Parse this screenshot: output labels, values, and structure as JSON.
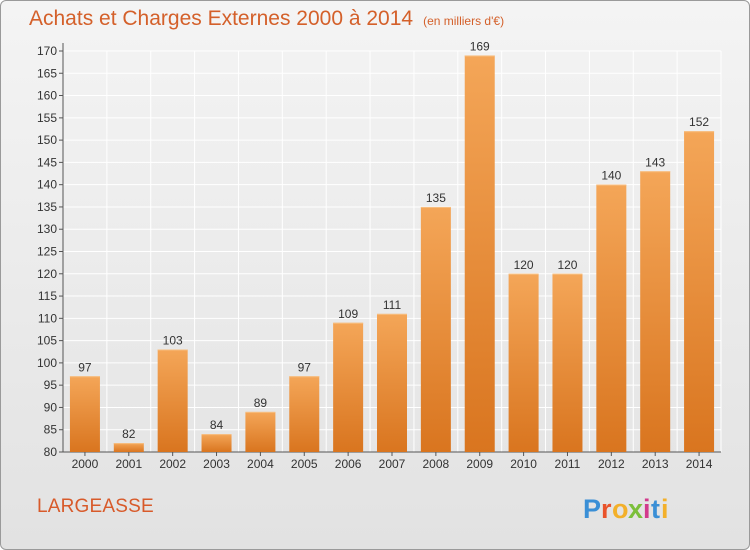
{
  "header": {
    "title": "Achats et Charges Externes 2000 à 2014",
    "unit": "(en milliers d'€)"
  },
  "footer": {
    "commune": "LARGEASSE",
    "logo_text": "Proxiti"
  },
  "colors": {
    "title": "#d4602a",
    "bar_top": "#f4a658",
    "bar_bottom": "#dc7a26",
    "grid": "#ffffff",
    "logo": [
      "#3a8fd6",
      "#e9532b",
      "#f3b02a",
      "#7bbf3a",
      "#d23a8c",
      "#3a8fd6",
      "#f3b02a"
    ]
  },
  "chart_data": {
    "type": "bar",
    "categories": [
      "2000",
      "2001",
      "2002",
      "2003",
      "2004",
      "2005",
      "2006",
      "2007",
      "2008",
      "2009",
      "2010",
      "2011",
      "2012",
      "2013",
      "2014"
    ],
    "values": [
      97,
      82,
      103,
      84,
      89,
      97,
      109,
      111,
      135,
      169,
      120,
      120,
      140,
      143,
      152
    ],
    "title": "Achats et Charges Externes 2000 à 2014",
    "subtitle": "(en milliers d'€)",
    "xlabel": "",
    "ylabel": "",
    "ylim": [
      80,
      170
    ],
    "yticks": [
      80,
      85,
      90,
      95,
      100,
      105,
      110,
      115,
      120,
      125,
      130,
      135,
      140,
      145,
      150,
      155,
      160,
      165,
      170
    ],
    "grid": true,
    "data_labels": true
  }
}
